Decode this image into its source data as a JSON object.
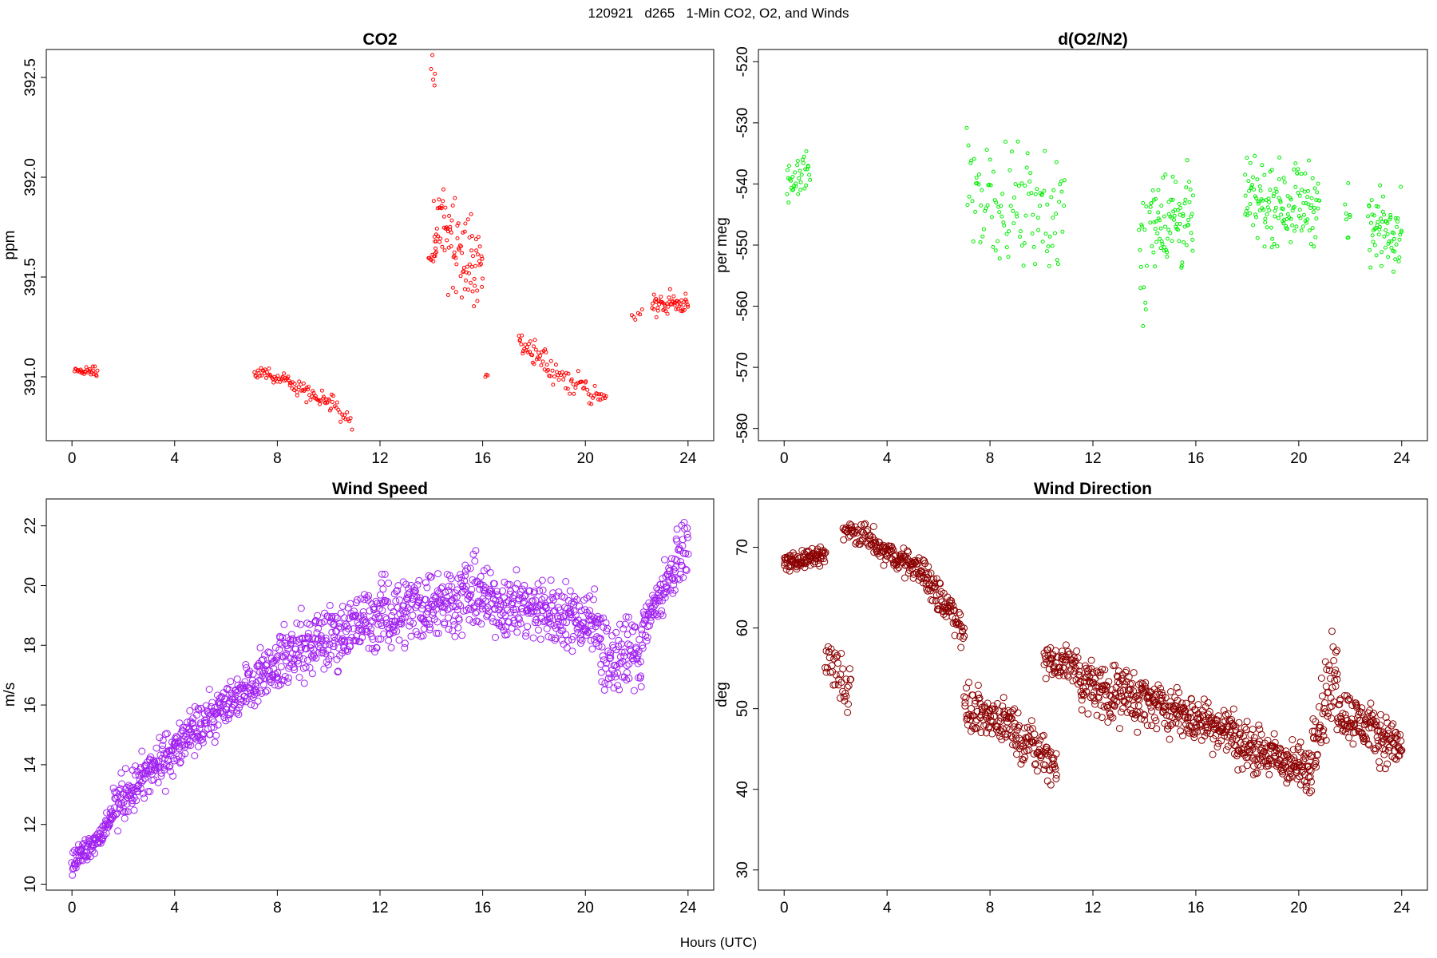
{
  "main_title": "120921   d265   1-Min CO2, O2, and Winds",
  "shared_xlabel": "Hours (UTC)",
  "chart_data": [
    {
      "id": "co2",
      "type": "scatter",
      "title": "CO2",
      "ylabel": "ppm",
      "xlabel": "",
      "xlim": [
        -1,
        25
      ],
      "ylim": [
        390.68,
        392.64
      ],
      "xticks": [
        0,
        4,
        8,
        12,
        16,
        20,
        24
      ],
      "yticks": [
        391.0,
        391.5,
        392.0,
        392.5
      ],
      "ytick_labels": [
        "391.0",
        "391.5",
        "392.0",
        "392.5"
      ],
      "color": "#ff0000",
      "marker_radius": 2,
      "segments": [
        {
          "x": [
            0.1,
            1.0
          ],
          "y": [
            391.03,
            391.02
          ],
          "spread": 0.02,
          "n": 28
        },
        {
          "x": [
            7.1,
            8.5
          ],
          "y": [
            391.02,
            390.98
          ],
          "spread": 0.025,
          "n": 40
        },
        {
          "x": [
            8.5,
            10.1
          ],
          "y": [
            390.97,
            390.87
          ],
          "spread": 0.04,
          "n": 45
        },
        {
          "x": [
            10.1,
            10.9
          ],
          "y": [
            390.87,
            390.78
          ],
          "spread": 0.04,
          "n": 18
        },
        {
          "x": [
            13.9,
            14.2
          ],
          "y": [
            391.6,
            391.6
          ],
          "spread": 0.03,
          "n": 10
        },
        {
          "x": [
            14.0,
            14.15
          ],
          "y": [
            392.52,
            392.52
          ],
          "spread": 0.08,
          "n": 5
        },
        {
          "x": [
            14.1,
            16.0
          ],
          "y": [
            391.78,
            391.55
          ],
          "spread": 0.22,
          "n": 95
        },
        {
          "x": [
            16.1,
            16.2
          ],
          "y": [
            391.0,
            391.0
          ],
          "spread": 0.01,
          "n": 3
        },
        {
          "x": [
            17.4,
            18.5
          ],
          "y": [
            391.2,
            391.08
          ],
          "spread": 0.05,
          "n": 35
        },
        {
          "x": [
            18.5,
            20.8
          ],
          "y": [
            391.02,
            390.9
          ],
          "spread": 0.05,
          "n": 55
        },
        {
          "x": [
            21.8,
            22.2
          ],
          "y": [
            391.3,
            391.32
          ],
          "spread": 0.02,
          "n": 6
        },
        {
          "x": [
            22.6,
            24.0
          ],
          "y": [
            391.36,
            391.37
          ],
          "spread": 0.05,
          "n": 55
        }
      ]
    },
    {
      "id": "o2",
      "type": "scatter",
      "title": "d(O2/N2)",
      "ylabel": "per meg",
      "xlabel": "",
      "xlim": [
        -1,
        25
      ],
      "ylim": [
        -582,
        -518
      ],
      "xticks": [
        0,
        4,
        8,
        12,
        16,
        20,
        24
      ],
      "yticks": [
        -580,
        -570,
        -560,
        -550,
        -540,
        -530,
        -520
      ],
      "ytick_labels": [
        "-580",
        "-570",
        "-560",
        "-550",
        "-540",
        "-530",
        "-520"
      ],
      "color": "#00ee00",
      "marker_radius": 2,
      "segments": [
        {
          "x": [
            0.1,
            1.0
          ],
          "y": [
            -540,
            -538
          ],
          "spread": 3.5,
          "n": 35
        },
        {
          "x": [
            7.1,
            10.9
          ],
          "y": [
            -541,
            -545
          ],
          "spread": 8,
          "n": 110
        },
        {
          "x": [
            13.8,
            14.1
          ],
          "y": [
            -553,
            -553
          ],
          "spread": 9,
          "n": 14
        },
        {
          "x": [
            14.2,
            15.9
          ],
          "y": [
            -545,
            -546
          ],
          "spread": 7,
          "n": 85
        },
        {
          "x": [
            17.9,
            20.8
          ],
          "y": [
            -543,
            -543
          ],
          "spread": 5.5,
          "n": 140
        },
        {
          "x": [
            21.8,
            22.0
          ],
          "y": [
            -546,
            -546
          ],
          "spread": 7,
          "n": 8
        },
        {
          "x": [
            22.7,
            24.0
          ],
          "y": [
            -547,
            -547
          ],
          "spread": 5,
          "n": 65
        }
      ]
    },
    {
      "id": "wind-speed",
      "type": "scatter",
      "title": "Wind Speed",
      "ylabel": "m/s",
      "xlabel": "",
      "xlim": [
        -1,
        25
      ],
      "ylim": [
        9.8,
        22.9
      ],
      "xticks": [
        0,
        4,
        8,
        12,
        16,
        20,
        24
      ],
      "yticks": [
        10,
        12,
        14,
        16,
        18,
        20,
        22
      ],
      "ytick_labels": [
        "10",
        "12",
        "14",
        "16",
        "18",
        "20",
        "22"
      ],
      "color": "#a020f0",
      "marker_radius": 4,
      "segments": [
        {
          "x": [
            0,
            1.5
          ],
          "y": [
            10.7,
            12.0
          ],
          "spread": 0.35,
          "n": 90
        },
        {
          "x": [
            1.5,
            4.0
          ],
          "y": [
            12.5,
            14.5
          ],
          "spread": 0.7,
          "n": 150
        },
        {
          "x": [
            4.0,
            8.0
          ],
          "y": [
            14.5,
            17.5
          ],
          "spread": 0.65,
          "n": 240
        },
        {
          "x": [
            8.0,
            12.0
          ],
          "y": [
            17.5,
            19.0
          ],
          "spread": 0.9,
          "n": 240
        },
        {
          "x": [
            12.0,
            16.0
          ],
          "y": [
            19.0,
            19.8
          ],
          "spread": 1.0,
          "n": 240
        },
        {
          "x": [
            16.0,
            20.6
          ],
          "y": [
            19.5,
            18.8
          ],
          "spread": 0.9,
          "n": 270
        },
        {
          "x": [
            20.6,
            22.2
          ],
          "y": [
            17.5,
            17.8
          ],
          "spread": 1.2,
          "n": 90
        },
        {
          "x": [
            22.2,
            24.0
          ],
          "y": [
            18.5,
            21.5
          ],
          "spread": 0.7,
          "n": 110
        }
      ]
    },
    {
      "id": "wind-direction",
      "type": "scatter",
      "title": "Wind Direction",
      "ylabel": "deg",
      "xlabel": "",
      "xlim": [
        -1,
        25
      ],
      "ylim": [
        27.5,
        76
      ],
      "xticks": [
        0,
        4,
        8,
        12,
        16,
        20,
        24
      ],
      "yticks": [
        30,
        40,
        50,
        60,
        70
      ],
      "ytick_labels": [
        "30",
        "40",
        "50",
        "60",
        "70"
      ],
      "color": "#8b0000",
      "marker_radius": 4,
      "segments": [
        {
          "x": [
            0,
            1.6
          ],
          "y": [
            68.0,
            69.0
          ],
          "spread": 0.9,
          "n": 90
        },
        {
          "x": [
            1.6,
            2.6
          ],
          "y": [
            56.0,
            52.0
          ],
          "spread": 3.0,
          "n": 40
        },
        {
          "x": [
            2.3,
            3.5
          ],
          "y": [
            72.0,
            71.0
          ],
          "spread": 1.2,
          "n": 50
        },
        {
          "x": [
            3.5,
            5.5
          ],
          "y": [
            70.0,
            67.0
          ],
          "spread": 1.3,
          "n": 110
        },
        {
          "x": [
            5.5,
            7.0
          ],
          "y": [
            66.0,
            60.0
          ],
          "spread": 2.0,
          "n": 80
        },
        {
          "x": [
            7.0,
            9.0
          ],
          "y": [
            50.0,
            48.0
          ],
          "spread": 2.3,
          "n": 110
        },
        {
          "x": [
            9.0,
            10.6
          ],
          "y": [
            47.0,
            43.0
          ],
          "spread": 2.3,
          "n": 80
        },
        {
          "x": [
            10.1,
            11.5
          ],
          "y": [
            56.0,
            55.0
          ],
          "spread": 2.2,
          "n": 70
        },
        {
          "x": [
            11.5,
            14.0
          ],
          "y": [
            53.0,
            51.0
          ],
          "spread": 3.0,
          "n": 150
        },
        {
          "x": [
            14.0,
            17.5
          ],
          "y": [
            51.0,
            47.0
          ],
          "spread": 2.5,
          "n": 200
        },
        {
          "x": [
            17.5,
            20.5
          ],
          "y": [
            46.0,
            42.0
          ],
          "spread": 2.5,
          "n": 180
        },
        {
          "x": [
            20.5,
            21.5
          ],
          "y": [
            46.0,
            55.0
          ],
          "spread": 4.5,
          "n": 60
        },
        {
          "x": [
            21.5,
            24.0
          ],
          "y": [
            50.0,
            45.0
          ],
          "spread": 2.6,
          "n": 150
        }
      ]
    }
  ]
}
